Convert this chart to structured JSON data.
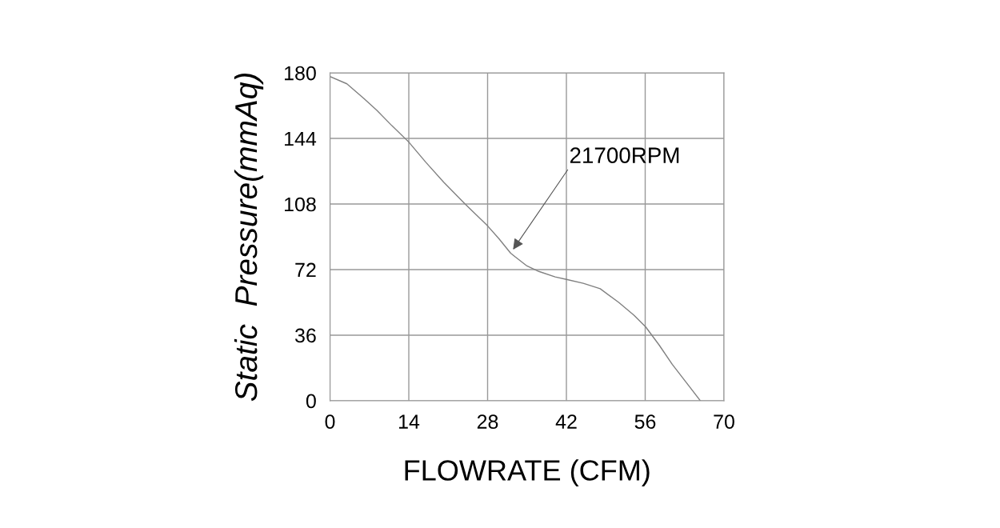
{
  "chart_data": {
    "type": "line",
    "xlabel": "FLOWRATE (CFM)",
    "ylabel": "Static  Pressure(mmAq)",
    "x": [
      0,
      3,
      6,
      8.3,
      11,
      14,
      17,
      20.2,
      24,
      28,
      30,
      32.1,
      32.9,
      35,
      37.1,
      40,
      42,
      45,
      48,
      51.3,
      54,
      56.1,
      58.5,
      60.8,
      63.3,
      65.8
    ],
    "series": [
      {
        "color": "#808080",
        "values": [
          178,
          174,
          166,
          159.5,
          151,
          142,
          131,
          120,
          108,
          96,
          89,
          81,
          79,
          74,
          71,
          68,
          66.6,
          64.5,
          61.5,
          54,
          47,
          40.5,
          30.5,
          20,
          10,
          0
        ]
      }
    ],
    "xlim": [
      0,
      70
    ],
    "xticks": [
      0,
      14,
      28,
      42,
      56,
      70
    ],
    "ylim": [
      0,
      180
    ],
    "yticks": [
      0,
      36,
      72,
      108,
      144,
      180
    ],
    "grid": true,
    "annotations": [
      {
        "text": "21700RPM",
        "x": 32.3,
        "y": 82
      }
    ]
  }
}
